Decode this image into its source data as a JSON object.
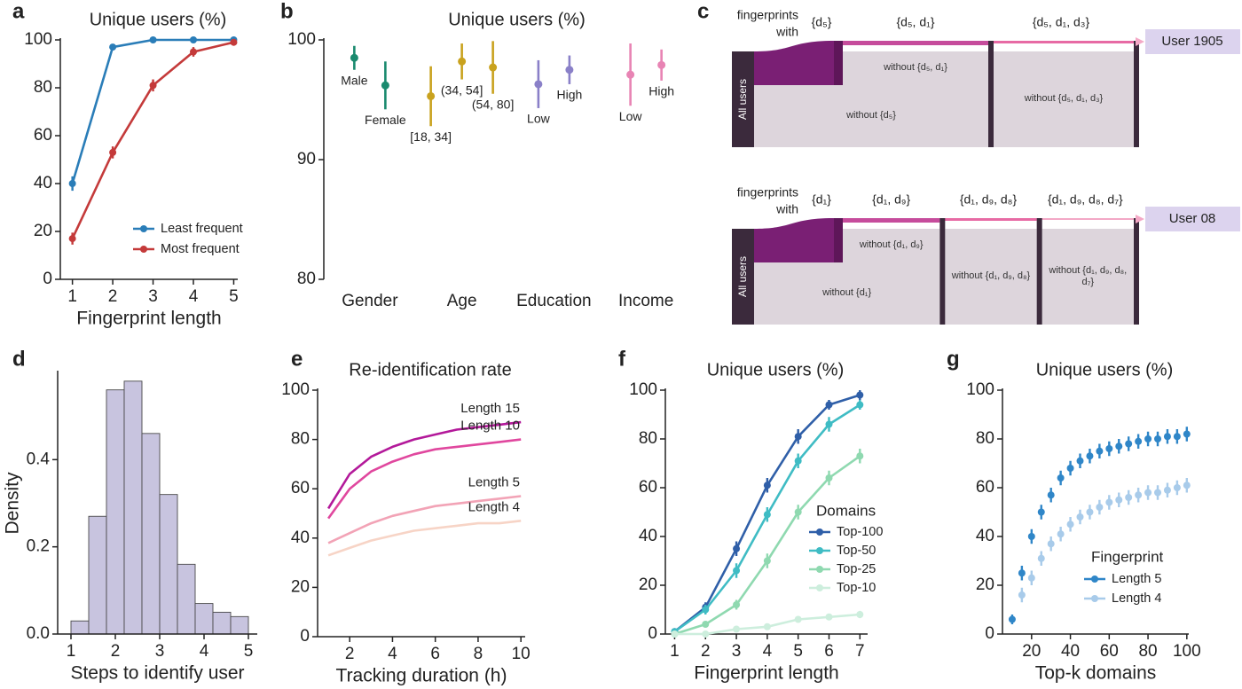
{
  "chart_data": [
    {
      "panel": "a",
      "type": "line",
      "title": "Unique users (%)",
      "xlabel": "Fingerprint length",
      "x": [
        1,
        2,
        3,
        4,
        5
      ],
      "xlim": [
        0.7,
        5.1
      ],
      "xticks": [
        1,
        2,
        3,
        4,
        5
      ],
      "ylim": [
        0,
        100
      ],
      "yticks": [
        0,
        20,
        40,
        60,
        80,
        100
      ],
      "legend": "lower right",
      "series": [
        {
          "name": "Least frequent",
          "color": "#2a7db8",
          "values": [
            40,
            97,
            100,
            100,
            100
          ],
          "errors": [
            3,
            1,
            0.5,
            0.5,
            0.5
          ]
        },
        {
          "name": "Most frequent",
          "color": "#c43a3a",
          "values": [
            17,
            53,
            81,
            95,
            99
          ],
          "errors": [
            2.5,
            2.5,
            2.5,
            2,
            1
          ]
        }
      ]
    },
    {
      "panel": "b",
      "type": "dot",
      "title": "Unique users (%)",
      "ylim": [
        80,
        100
      ],
      "yticks": [
        80,
        90,
        100
      ],
      "groups": [
        {
          "name": "Gender",
          "color": "#1a8a6e",
          "labels": [
            "Male",
            "Female"
          ],
          "values": [
            98.5,
            96.2
          ],
          "errors": [
            1,
            2
          ]
        },
        {
          "name": "Age",
          "color": "#c9a21e",
          "labels": [
            "[18, 34]",
            "(34, 54]",
            "(54, 80]"
          ],
          "values": [
            95.3,
            98.2,
            97.7
          ],
          "errors": [
            2.5,
            1.5,
            2.2
          ]
        },
        {
          "name": "Education",
          "color": "#8a80c8",
          "labels": [
            "Low",
            "High"
          ],
          "values": [
            96.3,
            97.5
          ],
          "errors": [
            2,
            1.2
          ]
        },
        {
          "name": "Income",
          "color": "#e884b4",
          "labels": [
            "Low",
            "High"
          ],
          "values": [
            97.1,
            97.9
          ],
          "errors": [
            2.6,
            1.3
          ]
        }
      ]
    },
    {
      "panel": "c",
      "type": "sankey",
      "diagrams": [
        {
          "header": [
            "fingerprints",
            "with"
          ],
          "source": "All users",
          "steps": [
            "{d₅}",
            "{d₅, d₁}",
            "{d₅, d₁, d₃}"
          ],
          "remainders": [
            "without {d₅}",
            "without {d₅, d₁}",
            "without {d₅, d₁, d₃}"
          ],
          "target": "User 1905"
        },
        {
          "header": [
            "fingerprints",
            "with"
          ],
          "source": "All users",
          "steps": [
            "{d₁}",
            "{d₁, d₉}",
            "{d₁, d₉, d₈}",
            "{d₁, d₉, d₈, d₇}"
          ],
          "remainders": [
            "without {d₁}",
            "without {d₁, d₉}",
            "without {d₁, d₉, d₈}",
            "without {d₁, d₉, d₈, d₇}"
          ],
          "target": "User 08"
        }
      ]
    },
    {
      "panel": "d",
      "type": "histogram",
      "xlabel": "Steps to identify user",
      "ylabel": "Density",
      "color": "#c8c4df",
      "bins": [
        1,
        1.4,
        1.8,
        2.2,
        2.6,
        3,
        3.4,
        3.8,
        4.2,
        4.6,
        5
      ],
      "values": [
        0.03,
        0.27,
        0.56,
        0.58,
        0.46,
        0.32,
        0.16,
        0.07,
        0.05,
        0.04
      ],
      "xlim": [
        0.7,
        5.2
      ],
      "xticks": [
        1,
        2,
        3,
        4,
        5
      ],
      "ylim": [
        0,
        0.6
      ],
      "yticks": [
        {
          "value": 0,
          "label": "0.0"
        },
        0.2,
        0.4
      ]
    },
    {
      "panel": "e",
      "type": "line",
      "title": "Re-identification rate",
      "xlabel": "Tracking duration (h)",
      "x": [
        1,
        2,
        3,
        4,
        5,
        6,
        7,
        8,
        9,
        10
      ],
      "xlim": [
        0.5,
        10.2
      ],
      "xticks": [
        2,
        4,
        6,
        8,
        10
      ],
      "ylim": [
        0,
        100
      ],
      "yticks": [
        0,
        20,
        40,
        60,
        80,
        100
      ],
      "legend": "inline",
      "series": [
        {
          "name": "Length 15",
          "color": "#b3199a",
          "values": [
            52,
            66,
            73,
            77,
            80,
            82,
            84,
            85,
            86,
            87
          ]
        },
        {
          "name": "Length 10",
          "color": "#e0479e",
          "values": [
            48,
            60,
            67,
            71,
            74,
            76,
            77,
            78,
            79,
            80
          ]
        },
        {
          "name": "Length 5",
          "color": "#f2a3b6",
          "values": [
            38,
            42,
            46,
            49,
            51,
            53,
            54,
            55,
            56,
            57
          ]
        },
        {
          "name": "Length 4",
          "color": "#f7d4c6",
          "values": [
            33,
            36,
            39,
            41,
            43,
            44,
            45,
            46,
            46,
            47
          ]
        }
      ]
    },
    {
      "panel": "f",
      "type": "line",
      "title": "Unique users (%)",
      "xlabel": "Fingerprint length",
      "x": [
        1,
        2,
        3,
        4,
        5,
        6,
        7
      ],
      "xlim": [
        0.7,
        7.25
      ],
      "xticks": [
        1,
        2,
        3,
        4,
        5,
        6,
        7
      ],
      "ylim": [
        0,
        100
      ],
      "yticks": [
        0,
        20,
        40,
        60,
        80,
        100
      ],
      "legend": "center right",
      "legend_title": "Domains",
      "series": [
        {
          "name": "Top-100",
          "color": "#2f5fa8",
          "values": [
            1,
            11,
            35,
            61,
            81,
            94,
            98
          ],
          "errors": [
            1,
            2,
            3,
            3,
            3,
            2,
            2
          ]
        },
        {
          "name": "Top-50",
          "color": "#3fbcc4",
          "values": [
            1,
            10,
            26,
            49,
            71,
            86,
            94
          ],
          "errors": [
            1,
            2,
            3,
            3,
            3,
            3,
            2
          ]
        },
        {
          "name": "Top-25",
          "color": "#8fd9b0",
          "values": [
            0,
            4,
            12,
            30,
            50,
            64,
            73
          ],
          "errors": [
            0.5,
            1,
            2,
            3,
            3,
            3,
            3
          ]
        },
        {
          "name": "Top-10",
          "color": "#cdeedd",
          "values": [
            0,
            0,
            2,
            3,
            6,
            7,
            8
          ],
          "errors": [
            0.3,
            0.3,
            0.5,
            0.5,
            1,
            1,
            1.5
          ]
        }
      ]
    },
    {
      "panel": "g",
      "type": "scatter",
      "title": "Unique users (%)",
      "xlabel": "Top-k domains",
      "x": [
        10,
        15,
        20,
        25,
        30,
        35,
        40,
        45,
        50,
        55,
        60,
        65,
        70,
        75,
        80,
        85,
        90,
        95,
        100
      ],
      "xlim": [
        5,
        101
      ],
      "xticks": [
        20,
        40,
        60,
        80,
        100
      ],
      "ylim": [
        0,
        100
      ],
      "yticks": [
        0,
        20,
        40,
        60,
        80,
        100
      ],
      "legend": "lower right",
      "legend_title": "Fingerprint",
      "series": [
        {
          "name": "Length 5",
          "color": "#2f86c8",
          "values": [
            6,
            25,
            40,
            50,
            57,
            64,
            68,
            71,
            73,
            75,
            76,
            77,
            78,
            79,
            80,
            80,
            81,
            81,
            82
          ],
          "errors": [
            2,
            3,
            3,
            3,
            3,
            3,
            3,
            3,
            3,
            3,
            3,
            3,
            3,
            3,
            3,
            3,
            3,
            3,
            3
          ]
        },
        {
          "name": "Length 4",
          "color": "#a8cbea",
          "values": [
            null,
            16,
            23,
            31,
            37,
            41,
            45,
            48,
            50,
            52,
            54,
            55,
            56,
            57,
            58,
            58,
            59,
            60,
            61
          ],
          "errors": [
            null,
            3,
            3,
            3,
            3,
            3,
            3,
            3,
            3,
            3,
            3,
            3,
            3,
            3,
            3,
            3,
            3,
            3,
            3
          ]
        }
      ]
    }
  ]
}
